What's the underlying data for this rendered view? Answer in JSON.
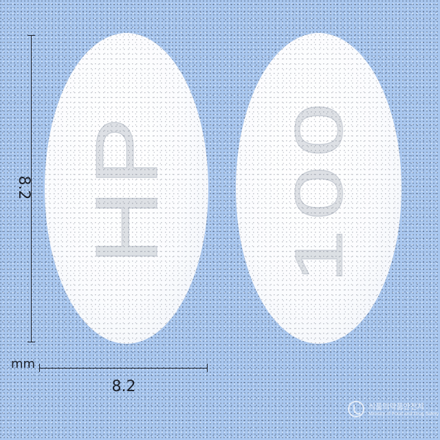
{
  "image": {
    "background_color": "#a9c7ef",
    "tablet_color": "#ffffff"
  },
  "tablets": [
    {
      "side": "front",
      "imprint": "HP"
    },
    {
      "side": "back",
      "imprint": "100"
    }
  ],
  "ruler": {
    "vertical_label": "8.2",
    "horizontal_label": "8.2",
    "unit": "mm"
  },
  "watermark": {
    "logo": "mfds-logo-icon",
    "korean_text": "식품의약품안전처",
    "english_text": "Ministry of Food and Drug Safety"
  }
}
